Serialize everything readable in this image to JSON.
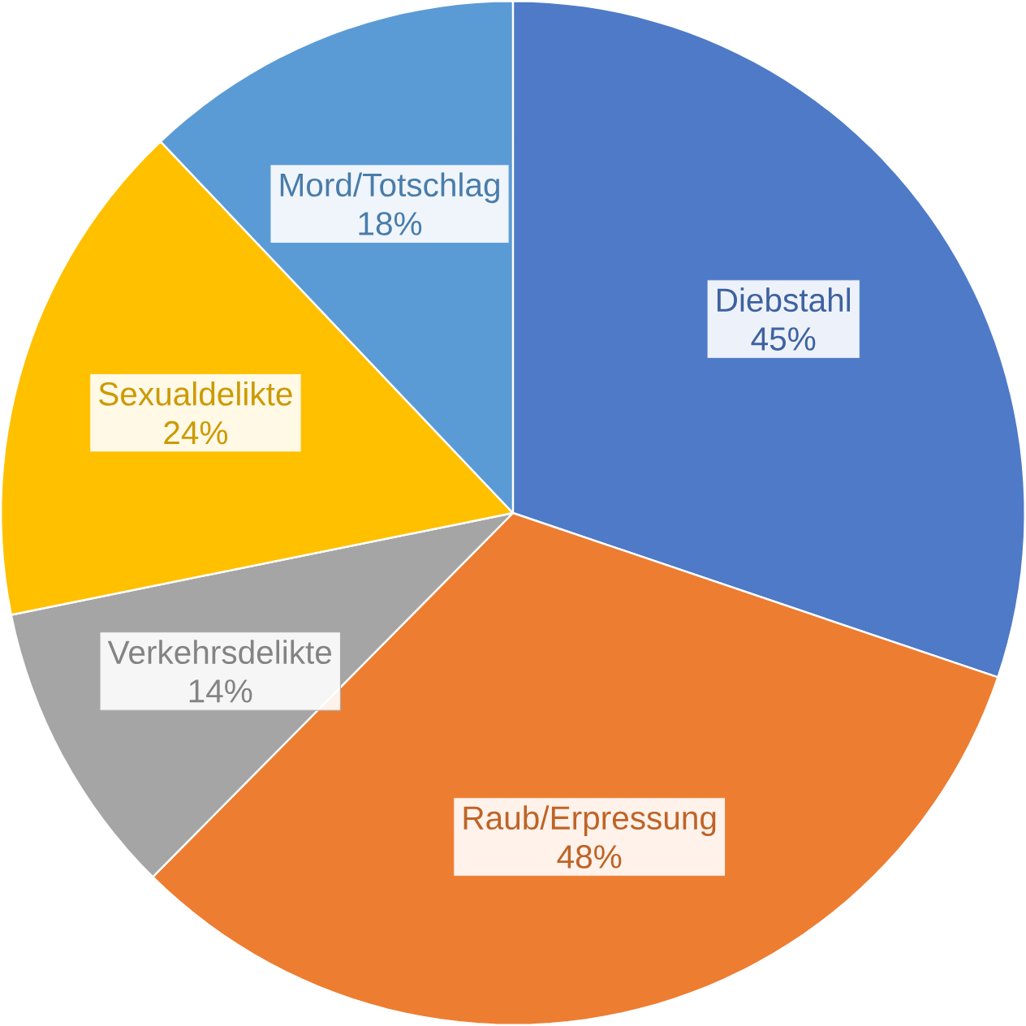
{
  "chart_data": {
    "type": "pie",
    "categories": [
      "Diebstahl",
      "Raub/Erpressung",
      "Verkehrsdelikte",
      "Sexualdelikte",
      "Mord/Totschlag"
    ],
    "values": [
      45,
      48,
      14,
      24,
      18
    ],
    "value_labels": [
      "45%",
      "48%",
      "14%",
      "24%",
      "18%"
    ],
    "colors": [
      "#4e7ac7",
      "#ed7d31",
      "#a5a5a5",
      "#ffc000",
      "#5b9bd5"
    ]
  }
}
